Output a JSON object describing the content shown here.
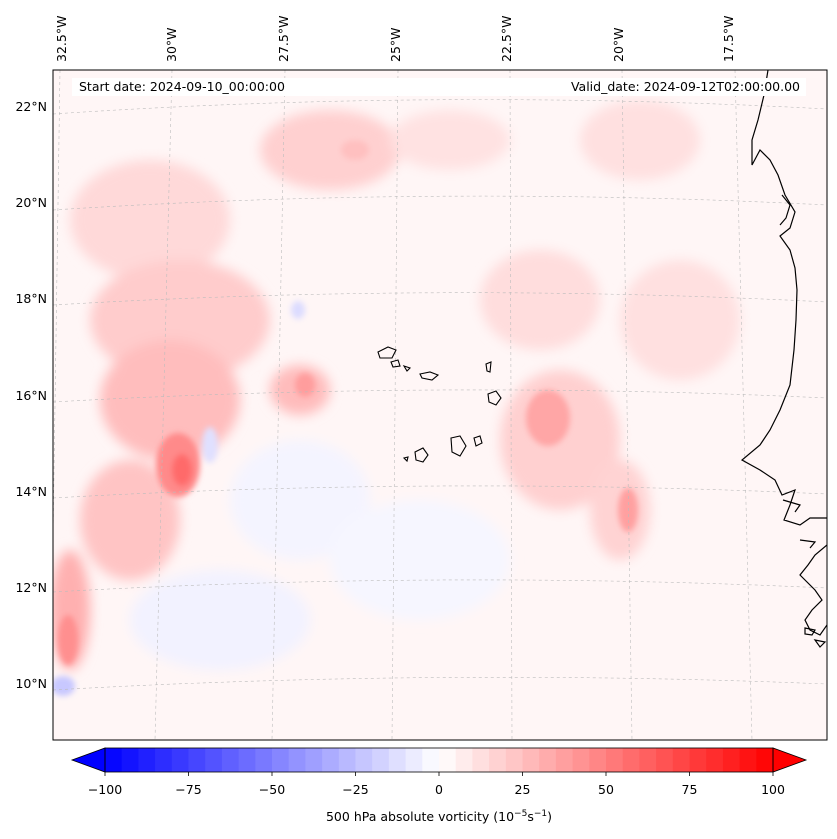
{
  "map": {
    "start_date": "Start date: 2024-09-10_00:00:00",
    "valid_date": "Valid_date: 2024-09-12T02:00:00.00",
    "lon_labels": [
      "32.5°W",
      "30°W",
      "27.5°W",
      "25°W",
      "22.5°W",
      "20°W",
      "17.5°W"
    ],
    "lat_labels": [
      "22°N",
      "20°N",
      "18°N",
      "16°N",
      "14°N",
      "12°N",
      "10°N"
    ]
  },
  "colorbar": {
    "ticks": [
      "−100",
      "−75",
      "−50",
      "−25",
      "0",
      "25",
      "50",
      "75",
      "100"
    ],
    "label_main": "500 hPa absolute vorticity (10",
    "label_exp1": "−5",
    "label_mid": "s",
    "label_exp2": "−1",
    "label_end": ")",
    "min": -100,
    "max": 100,
    "step": 5
  },
  "colors": {
    "neg": "#0000ff",
    "pos": "#ff0000",
    "coast": "#000000"
  }
}
